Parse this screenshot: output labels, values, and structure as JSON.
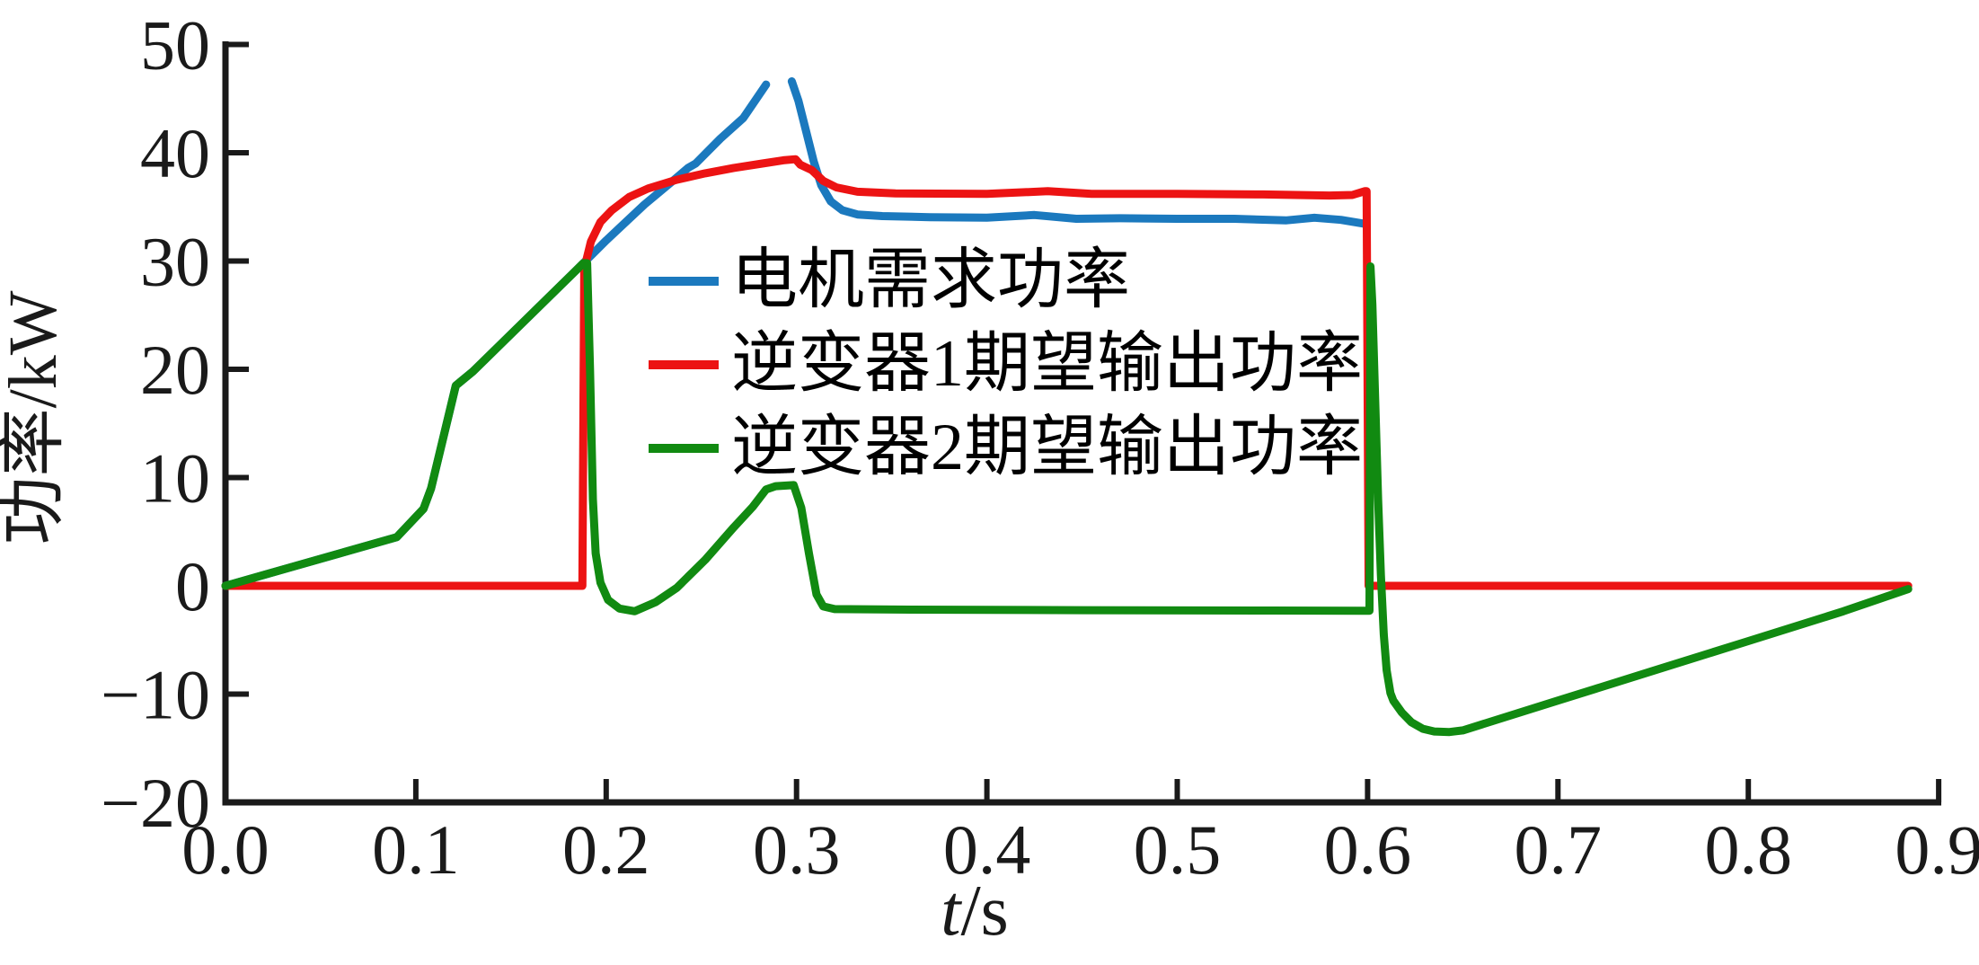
{
  "figure": {
    "background": "#ffffff"
  },
  "axes": {
    "axis_color": "#1a1a1a",
    "ylabel": "功率/kW",
    "xlabel_var": "t",
    "xlabel_unit": "/s",
    "x_tick_labels": [
      "0.0",
      "0.1",
      "0.2",
      "0.3",
      "0.4",
      "0.5",
      "0.6",
      "0.7",
      "0.8",
      "0.9"
    ],
    "x_tick_values": [
      0,
      0.1,
      0.2,
      0.3,
      0.4,
      0.5,
      0.6,
      0.7,
      0.8,
      0.9
    ],
    "y_tick_labels": [
      "50",
      "40",
      "30",
      "20",
      "10",
      "0",
      "−10",
      "−20"
    ],
    "y_tick_values": [
      50,
      40,
      30,
      20,
      10,
      0,
      -10,
      -20
    ]
  },
  "legend": {
    "items": [
      {
        "label": "电机需求功率",
        "color": "#1b79be"
      },
      {
        "label": "逆变器1期望输出功率",
        "color": "#ec1313"
      },
      {
        "label": "逆变器2期望输出功率",
        "color": "#118a11"
      }
    ]
  },
  "chart_data": {
    "type": "line",
    "title": "",
    "xlabel": "t/s",
    "ylabel": "功率/kW",
    "xlim": [
      0,
      0.9
    ],
    "ylim": [
      -20,
      50
    ],
    "grid": false,
    "legend_position": "upper-left-of-center, no frame",
    "series": [
      {
        "name": "电机需求功率",
        "color": "#1b79be",
        "note": "coincides with green curve before t=0.19; gap in line between t=0.284 and t=0.298",
        "segments": [
          [
            [
              0,
              0
            ],
            [
              0.09,
              4.5
            ],
            [
              0.104,
              7.1
            ],
            [
              0.108,
              9.0
            ],
            [
              0.121,
              18.5
            ],
            [
              0.13,
              19.8
            ],
            [
              0.188,
              29.8
            ],
            [
              0.2,
              31.9
            ],
            [
              0.22,
              35.2
            ],
            [
              0.235,
              37.4
            ],
            [
              0.243,
              38.6
            ],
            [
              0.247,
              39.0
            ],
            [
              0.26,
              41.3
            ],
            [
              0.272,
              43.2
            ],
            [
              0.284,
              46.3
            ]
          ],
          [
            [
              0.2975,
              46.6
            ],
            [
              0.301,
              44.8
            ],
            [
              0.305,
              42.0
            ],
            [
              0.309,
              39.2
            ],
            [
              0.313,
              37.0
            ],
            [
              0.318,
              35.5
            ],
            [
              0.324,
              34.7
            ],
            [
              0.332,
              34.3
            ],
            [
              0.345,
              34.15
            ],
            [
              0.37,
              34.05
            ],
            [
              0.4,
              34.0
            ],
            [
              0.425,
              34.25
            ],
            [
              0.447,
              33.9
            ],
            [
              0.47,
              33.95
            ],
            [
              0.5,
              33.9
            ],
            [
              0.53,
              33.9
            ],
            [
              0.557,
              33.75
            ],
            [
              0.572,
              34.0
            ],
            [
              0.586,
              33.8
            ],
            [
              0.598,
              33.45
            ]
          ]
        ]
      },
      {
        "name": "逆变器1期望输出功率",
        "color": "#ec1313",
        "note": "0 until t=0.188, steps to ~30, plateau ~36-39.4, drops to 0 at t=0.60, 0 until t=0.884",
        "segments": [
          [
            [
              0,
              0
            ],
            [
              0.1875,
              0
            ],
            [
              0.1885,
              29.3
            ],
            [
              0.192,
              31.8
            ],
            [
              0.197,
              33.6
            ],
            [
              0.203,
              34.7
            ],
            [
              0.212,
              35.9
            ],
            [
              0.222,
              36.7
            ],
            [
              0.237,
              37.5
            ],
            [
              0.252,
              38.1
            ],
            [
              0.267,
              38.6
            ],
            [
              0.282,
              39.0
            ],
            [
              0.293,
              39.3
            ],
            [
              0.2995,
              39.4
            ],
            [
              0.302,
              38.9
            ],
            [
              0.308,
              38.4
            ],
            [
              0.314,
              37.4
            ],
            [
              0.321,
              36.8
            ],
            [
              0.332,
              36.4
            ],
            [
              0.352,
              36.25
            ],
            [
              0.4,
              36.2
            ],
            [
              0.432,
              36.45
            ],
            [
              0.455,
              36.2
            ],
            [
              0.5,
              36.2
            ],
            [
              0.545,
              36.15
            ],
            [
              0.58,
              36.05
            ],
            [
              0.592,
              36.1
            ],
            [
              0.5985,
              36.45
            ],
            [
              0.5995,
              36.45
            ],
            [
              0.6005,
              0
            ],
            [
              0.65,
              0
            ],
            [
              0.884,
              0
            ]
          ]
        ]
      },
      {
        "name": "逆变器2期望输出功率",
        "color": "#118a11",
        "note": "rises 0→30 by t=0.188, drops to ~-2.3, hump to 9.3 near t=0.30, flat -2.3, spike to 29.5 at t=0.60, min -13.5 at t=0.64, linear recovery to ~0 at t=0.884",
        "segments": [
          [
            [
              0,
              0
            ],
            [
              0.09,
              4.5
            ],
            [
              0.104,
              7.1
            ],
            [
              0.108,
              9.0
            ],
            [
              0.121,
              18.5
            ],
            [
              0.13,
              19.8
            ],
            [
              0.188,
              29.8
            ],
            [
              0.19,
              29.8
            ],
            [
              0.1915,
              20
            ],
            [
              0.193,
              8
            ],
            [
              0.1945,
              3
            ],
            [
              0.197,
              0.3
            ],
            [
              0.201,
              -1.3
            ],
            [
              0.207,
              -2.1
            ],
            [
              0.215,
              -2.35
            ],
            [
              0.226,
              -1.5
            ],
            [
              0.237,
              -0.2
            ],
            [
              0.252,
              2.4
            ],
            [
              0.267,
              5.4
            ],
            [
              0.277,
              7.3
            ],
            [
              0.284,
              8.9
            ],
            [
              0.289,
              9.2
            ],
            [
              0.2985,
              9.3
            ],
            [
              0.3025,
              7.2
            ],
            [
              0.3065,
              3.0
            ],
            [
              0.3105,
              -0.8
            ],
            [
              0.314,
              -1.9
            ],
            [
              0.32,
              -2.15
            ],
            [
              0.36,
              -2.2
            ],
            [
              0.45,
              -2.25
            ],
            [
              0.55,
              -2.28
            ],
            [
              0.597,
              -2.3
            ],
            [
              0.601,
              -2.3
            ],
            [
              0.6015,
              29.5
            ],
            [
              0.6025,
              26
            ],
            [
              0.604,
              17
            ],
            [
              0.6055,
              8
            ],
            [
              0.607,
              1
            ],
            [
              0.6085,
              -4.5
            ],
            [
              0.61,
              -7.8
            ],
            [
              0.612,
              -9.9
            ],
            [
              0.6135,
              -10.6
            ],
            [
              0.618,
              -11.7
            ],
            [
              0.623,
              -12.6
            ],
            [
              0.629,
              -13.2
            ],
            [
              0.635,
              -13.45
            ],
            [
              0.643,
              -13.5
            ],
            [
              0.65,
              -13.35
            ],
            [
              0.7,
              -10.6
            ],
            [
              0.75,
              -7.85
            ],
            [
              0.8,
              -5.1
            ],
            [
              0.85,
              -2.35
            ],
            [
              0.884,
              -0.3
            ]
          ]
        ]
      }
    ]
  }
}
